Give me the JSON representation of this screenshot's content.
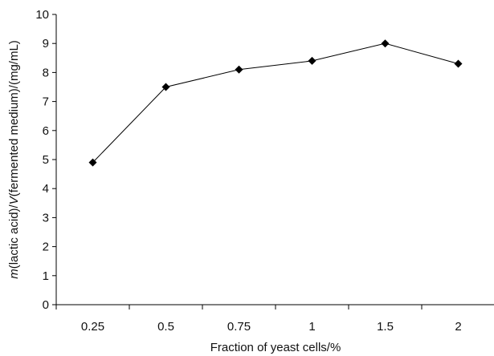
{
  "chart_data": {
    "type": "line",
    "categories": [
      "0.25",
      "0.5",
      "0.75",
      "1",
      "1.5",
      "2"
    ],
    "series": [
      {
        "values": [
          4.9,
          7.5,
          8.1,
          8.4,
          9.0,
          8.3
        ]
      }
    ],
    "title": "",
    "xlabel": "Fraction of yeast cells/%",
    "ylabel": {
      "m_italic": "m",
      "part1": "(lactic acid)/",
      "v_italic": "V",
      "part2": "(fermented medium)/(mg/mL)"
    },
    "ylim": [
      0,
      10
    ],
    "yticks": [
      "0",
      "1",
      "2",
      "3",
      "4",
      "5",
      "6",
      "7",
      "8",
      "9",
      "10"
    ],
    "grid": false,
    "marker": "diamond",
    "colors": {
      "line": "#000000",
      "marker": "#000000",
      "text": "#111111"
    }
  }
}
